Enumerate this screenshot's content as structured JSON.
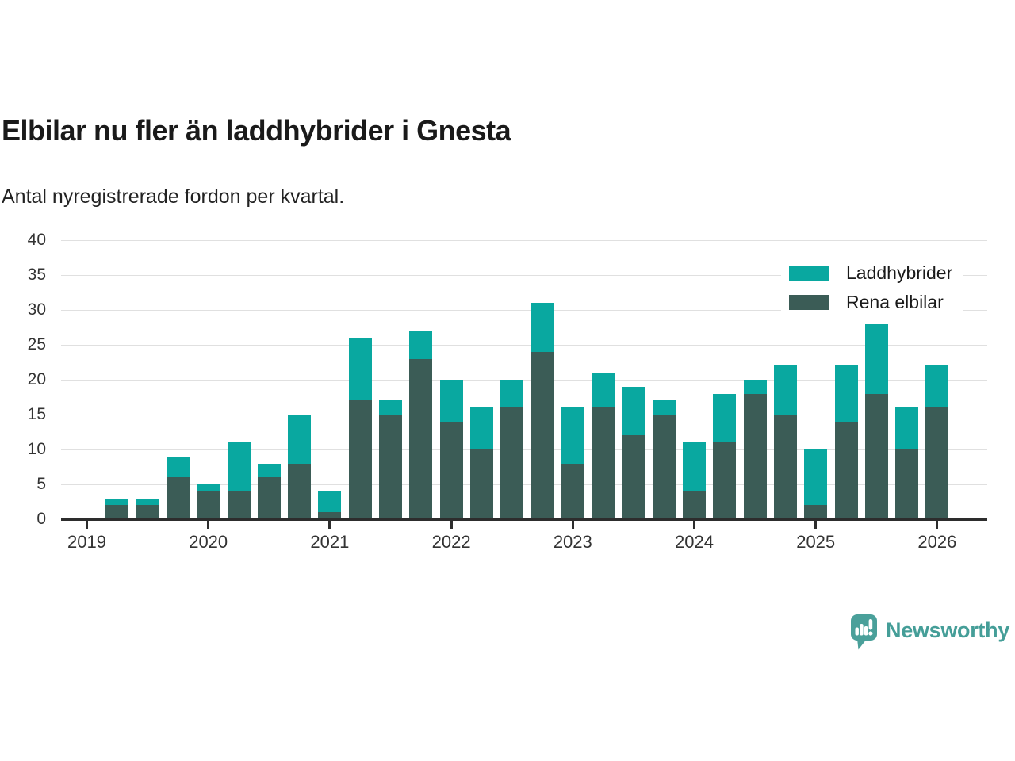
{
  "header": {
    "title": "Elbilar nu fler än laddhybrider i Gnesta",
    "subtitle": "Antal nyregistrerade fordon per kvartal."
  },
  "chart_data": {
    "type": "bar",
    "stacked": true,
    "title": "Elbilar nu fler än laddhybrider i Gnesta",
    "subtitle": "Antal nyregistrerade fordon per kvartal.",
    "xlabel": "",
    "ylabel": "",
    "ylim": [
      0,
      40
    ],
    "yticks": [
      0,
      5,
      10,
      15,
      20,
      25,
      30,
      35,
      40
    ],
    "grid": true,
    "legend_position": "top-right",
    "categories": [
      "2019 K2",
      "2019 K3",
      "2019 K4",
      "2020 K1",
      "2020 K2",
      "2020 K3",
      "2020 K4",
      "2021 K1",
      "2021 K2",
      "2021 K3",
      "2021 K4",
      "2022 K1",
      "2022 K2",
      "2022 K3",
      "2022 K4",
      "2023 K1",
      "2023 K2",
      "2023 K3",
      "2023 K4",
      "2024 K1",
      "2024 K2",
      "2024 K3",
      "2024 K4",
      "2025 K1",
      "2025 K2",
      "2025 K3",
      "2025 K4",
      "2026 K1"
    ],
    "year_ticks": [
      "2019",
      "2020",
      "2021",
      "2022",
      "2023",
      "2024",
      "2025",
      "2026"
    ],
    "series": [
      {
        "name": "Laddhybrider",
        "color": "#09a8a0",
        "values": [
          1,
          1,
          3,
          1,
          7,
          2,
          7,
          3,
          9,
          2,
          4,
          6,
          6,
          4,
          7,
          8,
          5,
          7,
          2,
          7,
          7,
          2,
          7,
          8,
          8,
          10,
          6,
          6
        ]
      },
      {
        "name": "Rena elbilar",
        "color": "#3b5c56",
        "values": [
          2,
          2,
          6,
          4,
          4,
          6,
          8,
          1,
          17,
          15,
          23,
          14,
          10,
          16,
          24,
          8,
          16,
          12,
          15,
          4,
          11,
          18,
          15,
          2,
          14,
          18,
          10,
          16
        ]
      }
    ],
    "totals": [
      3,
      3,
      9,
      5,
      11,
      8,
      15,
      4,
      26,
      17,
      27,
      20,
      16,
      20,
      31,
      16,
      21,
      19,
      17,
      11,
      18,
      20,
      22,
      10,
      22,
      28,
      16,
      22
    ]
  },
  "colors": {
    "laddhybrider": "#09a8a0",
    "rena_elbilar": "#3b5c56",
    "gridline": "#e0e0e0",
    "axis": "#2d2d2d",
    "logo": "#459e98"
  },
  "branding": {
    "logo_text": "Newsworthy"
  }
}
